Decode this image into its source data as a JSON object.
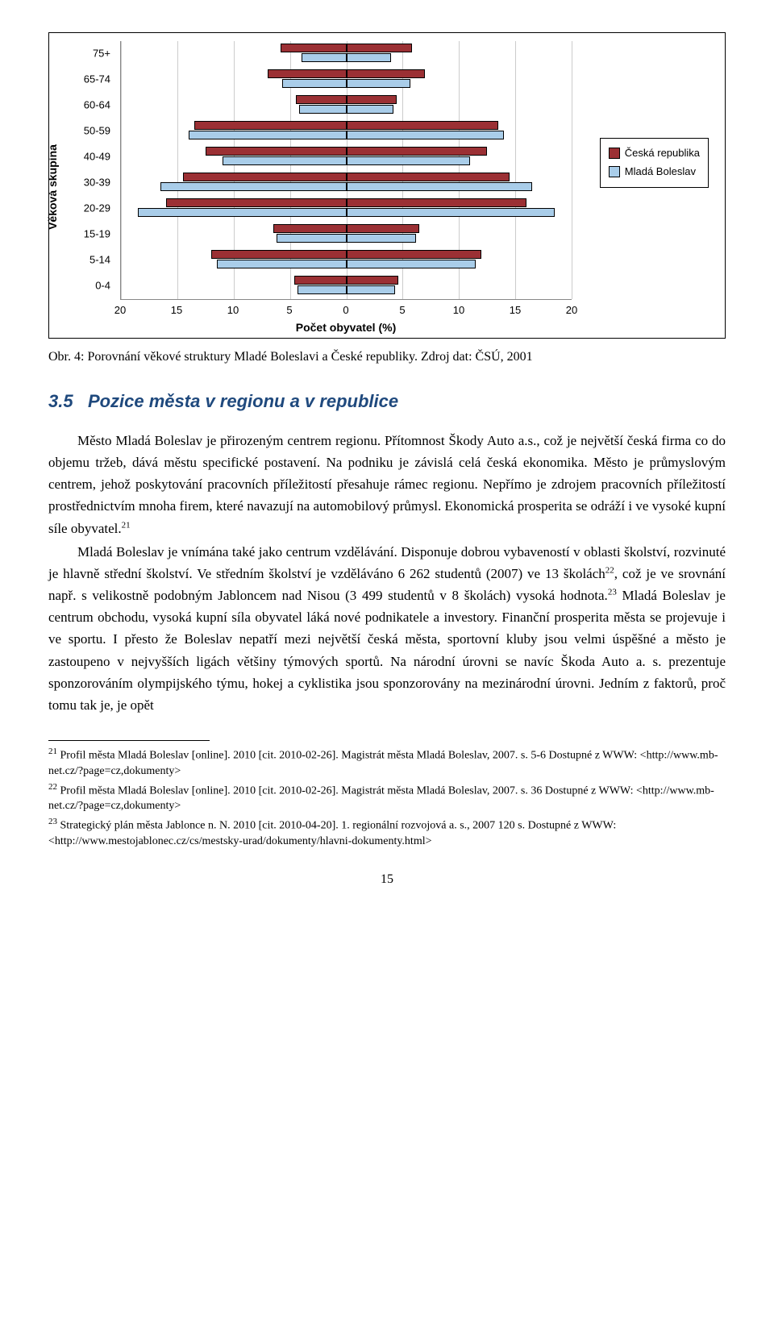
{
  "chart": {
    "type": "population-pyramid",
    "y_label": "Věková skupina",
    "x_label": "Počet obyvatel (%)",
    "categories": [
      "75+",
      "65-74",
      "60-64",
      "50-59",
      "40-49",
      "30-39",
      "20-29",
      "15-19",
      "5-14",
      "0-4"
    ],
    "x_ticks": [
      "20",
      "15",
      "10",
      "5",
      "0",
      "5",
      "10",
      "15",
      "20"
    ],
    "x_min": -20,
    "x_max": 20,
    "series": [
      {
        "name": "Česká republika",
        "color": "#9b3034"
      },
      {
        "name": "Mladá Boleslav",
        "color": "#a9cde9"
      }
    ],
    "cr_left": [
      5.8,
      7.0,
      4.5,
      13.5,
      12.5,
      14.5,
      16.0,
      6.5,
      12.0,
      4.6
    ],
    "cr_right": [
      5.8,
      7.0,
      4.5,
      13.5,
      12.5,
      14.5,
      16.0,
      6.5,
      12.0,
      4.6
    ],
    "mb_left": [
      4.0,
      5.7,
      4.2,
      14.0,
      11.0,
      16.5,
      18.5,
      6.2,
      11.5,
      4.3
    ],
    "mb_right": [
      4.0,
      5.7,
      4.2,
      14.0,
      11.0,
      16.5,
      18.5,
      6.2,
      11.5,
      4.3
    ],
    "font": "Arial",
    "tick_fontsize": 13,
    "label_fontsize": 14,
    "border_color": "#000000",
    "grid_color": "#cccccc",
    "background": "#ffffff"
  },
  "caption_obr": "Obr. 4: Porovnání věkové struktury Mladé Boleslavi a České republiky.",
  "caption_src": "Zdroj dat: ČSÚ, 2001",
  "heading_num": "3.5",
  "heading_text": "Pozice města v regionu a v republice",
  "paragraphs": [
    "Město Mladá Boleslav je přirozeným centrem regionu. Přítomnost Škody Auto a.s., což je největší česká firma co do objemu tržeb, dává městu specifické postavení. Na podniku je závislá celá česká ekonomika. Město je průmyslovým centrem, jehož poskytování pracovních příležitostí přesahuje rámec regionu. Nepřímo je zdrojem pracovních příležitostí prostřednictvím mnoha firem, které navazují na automobilový průmysl. Ekonomická prosperita se odráží i ve vysoké kupní síle obyvatel.",
    "Mladá Boleslav je vnímána také jako centrum vzdělávání. Disponuje dobrou vybaveností v oblasti školství, rozvinuté je hlavně střední školství. Ve středním školství je vzděláváno 6 262 studentů (2007) ve 13 školách",
    ", což je ve srovnání např. s velikostně podobným Jabloncem nad Nisou (3 499 studentů v 8 školách) vysoká hodnota.",
    " Mladá Boleslav je centrum obchodu, vysoká kupní síla obyvatel láká nové podnikatele a investory. Finanční prosperita města se projevuje i ve sportu. I přesto že Boleslav nepatří mezi největší česká města, sportovní kluby jsou velmi úspěšné a město je zastoupeno v nejvyšších ligách většiny týmových sportů. Na národní úrovni se navíc Škoda Auto a. s. prezentuje sponzorováním olympijského týmu, hokej a cyklistika jsou sponzorovány na mezinárodní úrovni. Jedním z faktorů, proč tomu tak je, je opět"
  ],
  "sup21": "21",
  "sup22": "22",
  "sup23": "23",
  "footnotes": [
    "Profil města Mladá Boleslav [online]. 2010 [cit. 2010-02-26]. Magistrát města Mladá Boleslav, 2007. s. 5-6 Dostupné z WWW: <http://www.mb-net.cz/?page=cz,dokumenty>",
    "Profil města Mladá Boleslav [online]. 2010 [cit. 2010-02-26]. Magistrát města Mladá Boleslav, 2007. s. 36 Dostupné z WWW: <http://www.mb-net.cz/?page=cz,dokumenty>",
    "Strategický plán města Jablonce n. N. 2010 [cit. 2010-04-20]. 1. regionální rozvojová a. s., 2007 120 s. Dostupné z WWW: <http://www.mestojablonec.cz/cs/mestsky-urad/dokumenty/hlavni-dokumenty.html>"
  ],
  "fn_nums": [
    "21",
    "22",
    "23"
  ],
  "page_number": "15"
}
